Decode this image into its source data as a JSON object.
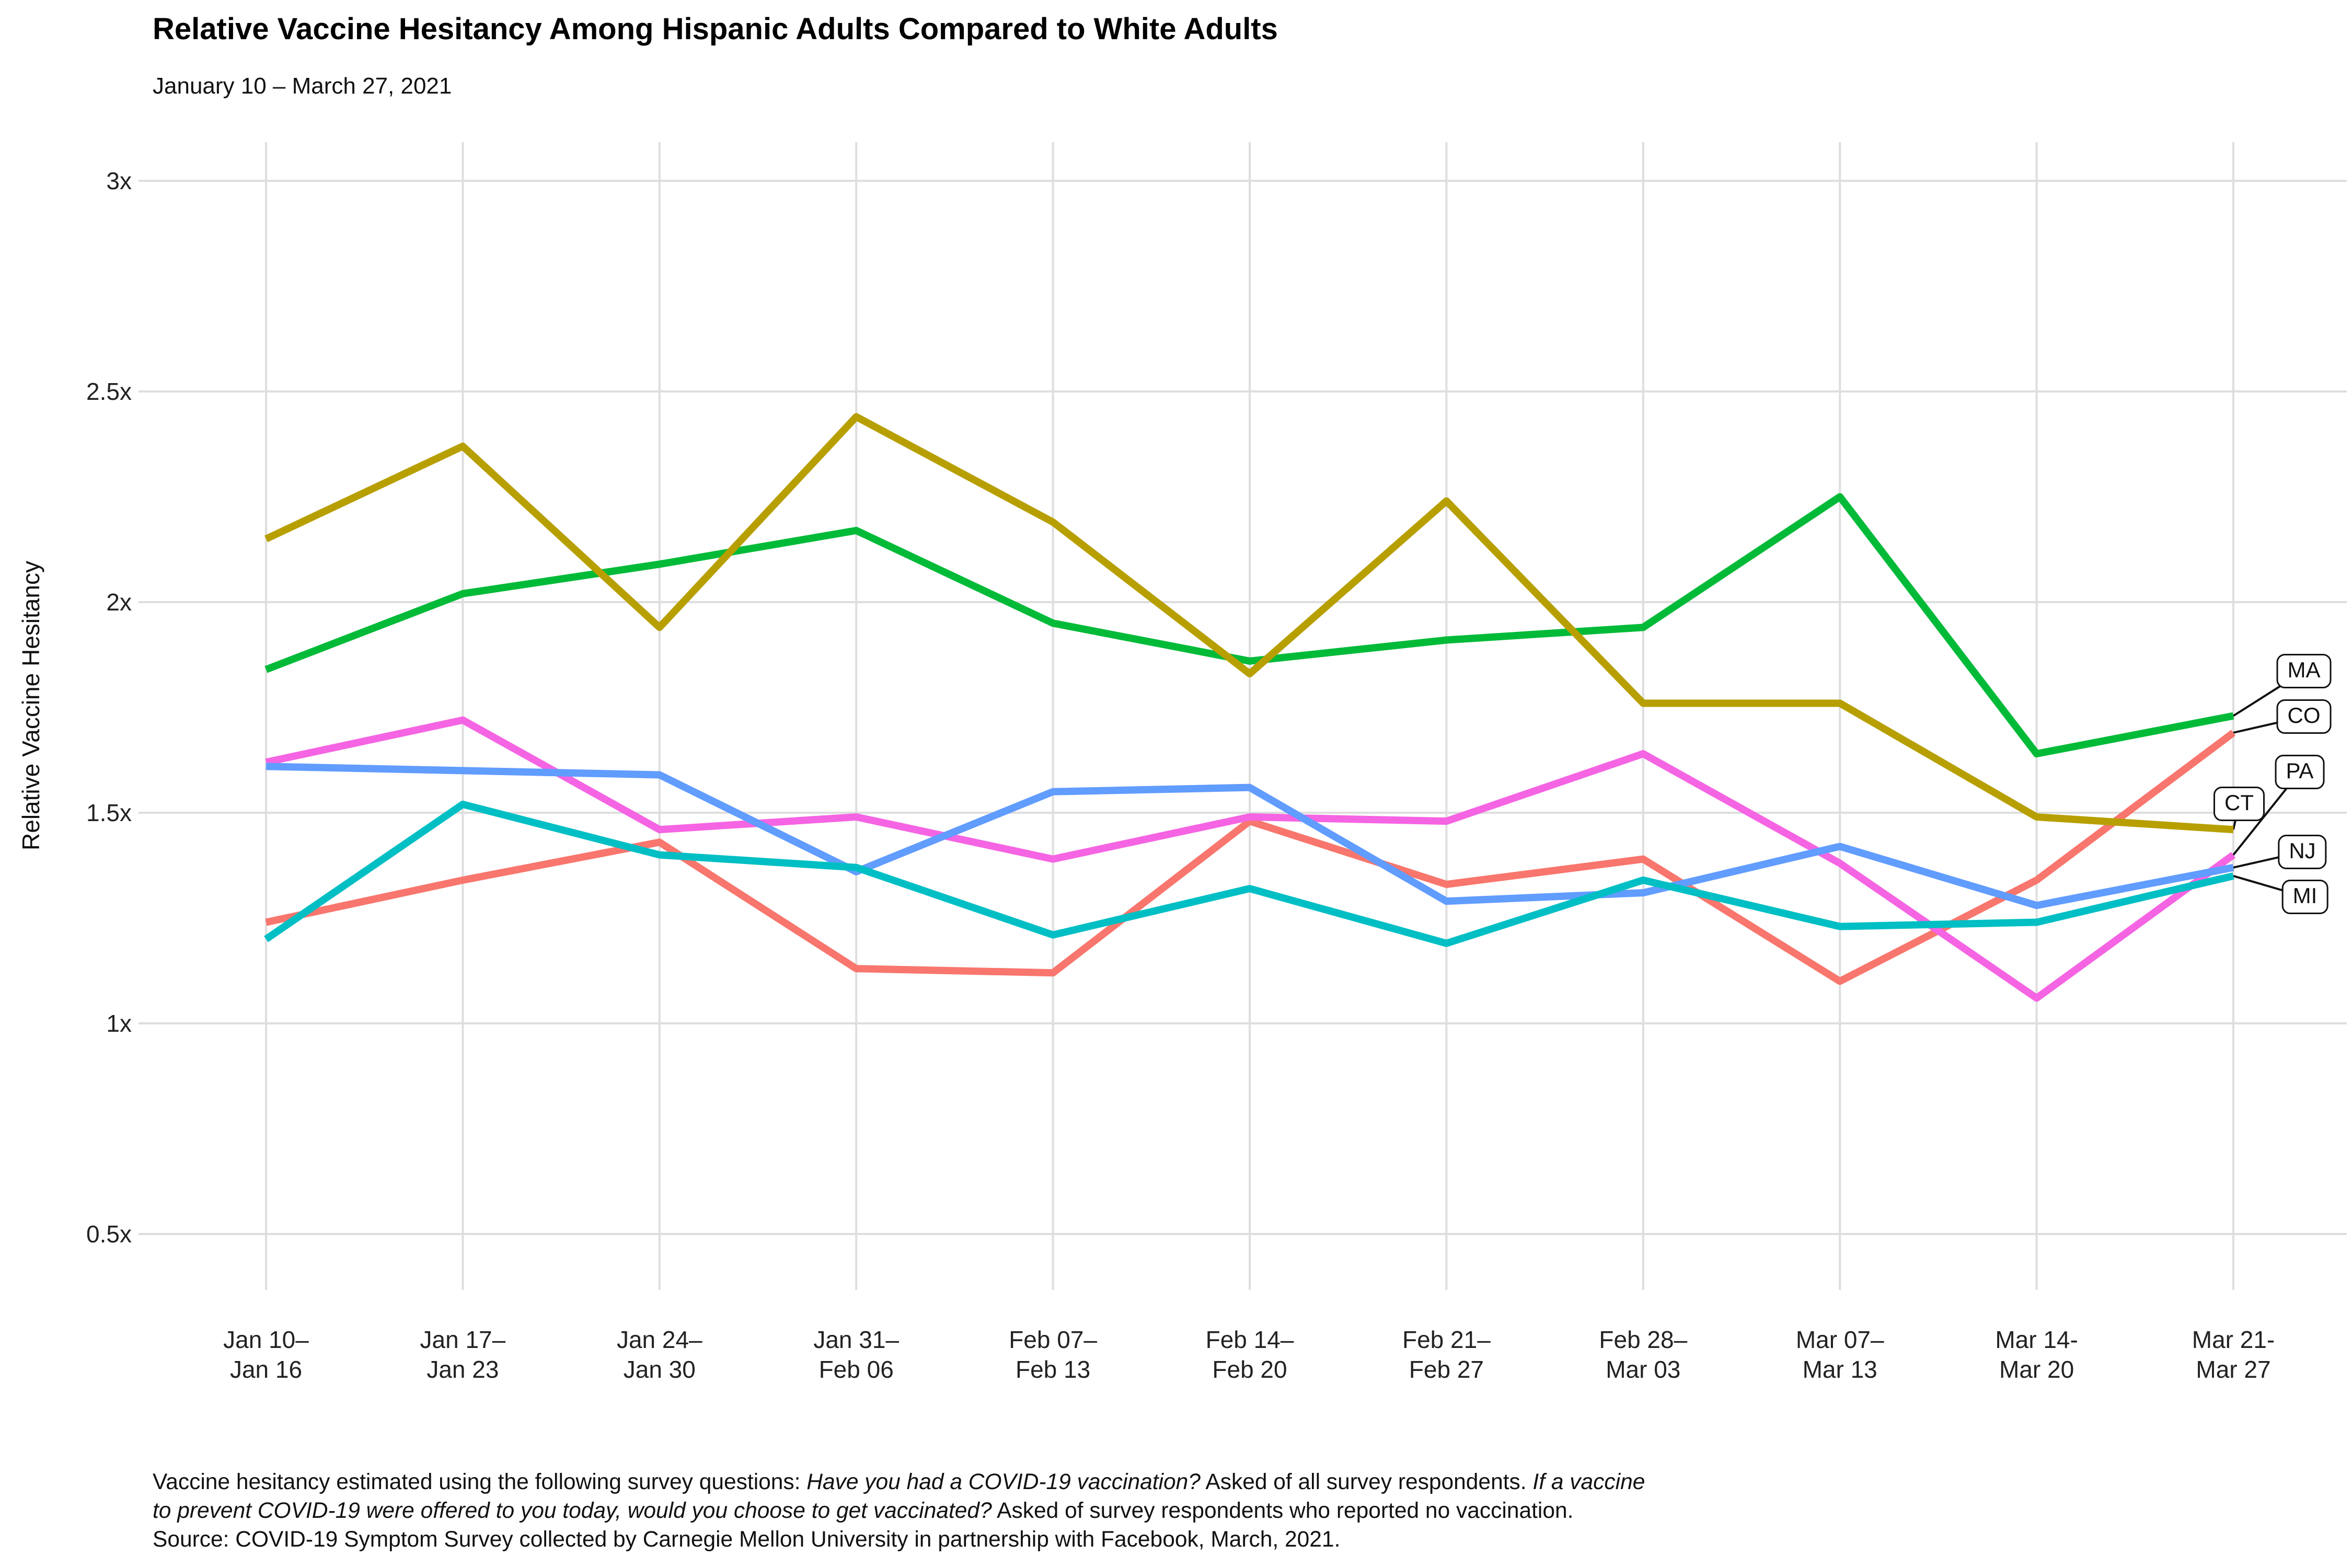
{
  "title": "Relative Vaccine Hesitancy Among Hispanic Adults Compared to White Adults",
  "subtitle": "January 10 – March 27, 2021",
  "y_axis": {
    "label": "Relative Vaccine Hesitancy",
    "ticks": [
      "3x",
      "2.5x",
      "2x",
      "1.5x",
      "1x",
      "0.5x"
    ],
    "tick_values": [
      3,
      2.5,
      2,
      1.5,
      1,
      0.5
    ]
  },
  "footer": {
    "lines": [
      [
        {
          "text": "Vaccine hesitancy estimated using the following survey questions: ",
          "italic": false
        },
        {
          "text": "Have you had a COVID-19 vaccination?",
          "italic": true
        },
        {
          "text": " Asked of all survey respondents. ",
          "italic": false
        },
        {
          "text": "If a vaccine",
          "italic": true
        }
      ],
      [
        {
          "text": "to prevent COVID-19 were offered to you today, would you choose to get vaccinated?",
          "italic": true
        },
        {
          "text": " Asked of survey respondents who reported no vaccination.",
          "italic": false
        }
      ],
      [
        {
          "text": "Source: COVID-19 Symptom Survey collected by Carnegie Mellon University in partnership with Facebook, March, 2021.",
          "italic": false
        }
      ]
    ]
  },
  "chart_data": {
    "type": "line",
    "title": "Relative Vaccine Hesitancy Among Hispanic Adults Compared to White Adults",
    "subtitle": "January 10 – March 27, 2021",
    "xlabel": "",
    "ylabel": "Relative Vaccine Hesitancy",
    "ylim": [
      0.5,
      3
    ],
    "yticks": [
      0.5,
      1,
      1.5,
      2,
      2.5,
      3
    ],
    "ytick_labels": [
      "0.5x",
      "1x",
      "1.5x",
      "2x",
      "2.5x",
      "3x"
    ],
    "grid": true,
    "legend_position": "right-edge-labels",
    "categories": [
      "Jan 10–Jan 16",
      "Jan 17–Jan 23",
      "Jan 24–Jan 30",
      "Jan 31–Feb 06",
      "Feb 07–Feb 13",
      "Feb 14–Feb 20",
      "Feb 21–Feb 27",
      "Feb 28–Mar 03",
      "Mar 07–Mar 13",
      "Mar 14-Mar 20",
      "Mar 21-Mar 27"
    ],
    "series": [
      {
        "name": "MA",
        "color": "#00BA38",
        "values": [
          1.84,
          2.02,
          2.09,
          2.17,
          1.95,
          1.86,
          1.91,
          1.94,
          2.25,
          1.64,
          1.73
        ]
      },
      {
        "name": "CO",
        "color": "#F8766D",
        "values": [
          1.24,
          1.34,
          1.43,
          1.13,
          1.12,
          1.48,
          1.33,
          1.39,
          1.1,
          1.34,
          1.69
        ]
      },
      {
        "name": "PA",
        "color": "#F564E3",
        "values": [
          1.62,
          1.72,
          1.46,
          1.49,
          1.39,
          1.49,
          1.48,
          1.64,
          1.38,
          1.06,
          1.4
        ]
      },
      {
        "name": "CT",
        "color": "#B79F00",
        "values": [
          2.15,
          2.37,
          1.94,
          2.44,
          2.19,
          1.83,
          2.24,
          1.76,
          1.76,
          1.49,
          1.46
        ]
      },
      {
        "name": "NJ",
        "color": "#619CFF",
        "values": [
          1.61,
          1.6,
          1.59,
          1.36,
          1.55,
          1.56,
          1.29,
          1.31,
          1.42,
          1.28,
          1.37
        ]
      },
      {
        "name": "MI",
        "color": "#00BFC4",
        "values": [
          1.2,
          1.52,
          1.4,
          1.37,
          1.21,
          1.32,
          1.19,
          1.34,
          1.23,
          1.24,
          1.35
        ]
      }
    ]
  }
}
